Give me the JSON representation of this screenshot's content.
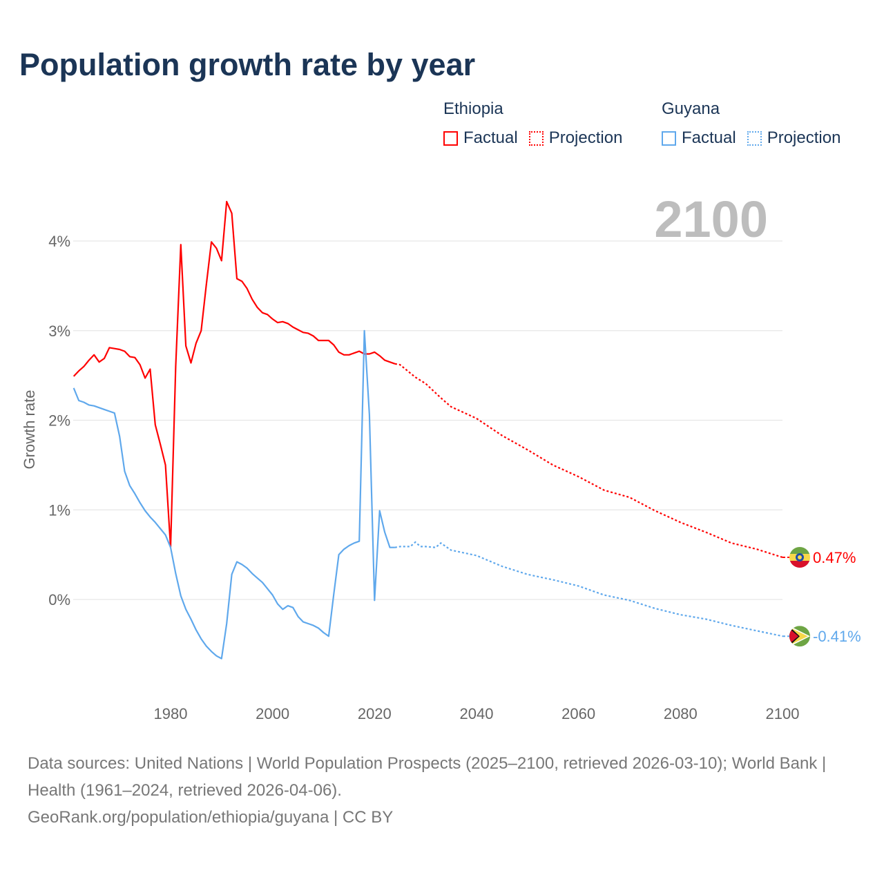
{
  "title": "Population growth rate by year",
  "legend": [
    {
      "country": "Ethiopia",
      "factual": "Factual",
      "projection": "Projection",
      "color": "#ff0000"
    },
    {
      "country": "Guyana",
      "factual": "Factual",
      "projection": "Projection",
      "color": "#5fa8ec"
    }
  ],
  "footer": {
    "sources": "Data sources: United Nations | World Population Prospects (2025–2100, retrieved 2026-03-10); World Bank | Health (1961–2024, retrieved 2026-04-06).",
    "credit": "GeoRank.org/population/ethiopia/guyana | CC BY"
  },
  "chart_data": {
    "type": "line",
    "title": "Population growth rate by year",
    "xlabel": "",
    "ylabel": "Growth rate",
    "year_label": "2100",
    "xlim": [
      1961,
      2100
    ],
    "ylim": [
      -1,
      4.5
    ],
    "x_ticks": [
      1980,
      2000,
      2020,
      2040,
      2060,
      2080,
      2100
    ],
    "y_ticks": [
      0,
      1,
      2,
      3,
      4
    ],
    "y_tick_labels": [
      "0%",
      "1%",
      "2%",
      "3%",
      "4%"
    ],
    "grid": true,
    "series": [
      {
        "name": "Ethiopia",
        "color": "#ff0000",
        "end_label": "0.47%",
        "factual": {
          "x": [
            1961,
            1962,
            1963,
            1964,
            1965,
            1966,
            1967,
            1968,
            1969,
            1970,
            1971,
            1972,
            1973,
            1974,
            1975,
            1976,
            1977,
            1978,
            1979,
            1980,
            1981,
            1982,
            1983,
            1984,
            1985,
            1986,
            1987,
            1988,
            1989,
            1990,
            1991,
            1992,
            1993,
            1994,
            1995,
            1996,
            1997,
            1998,
            1999,
            2000,
            2001,
            2002,
            2003,
            2004,
            2005,
            2006,
            2007,
            2008,
            2009,
            2010,
            2011,
            2012,
            2013,
            2014,
            2015,
            2016,
            2017,
            2018,
            2019,
            2020,
            2021,
            2022,
            2023,
            2024
          ],
          "y": [
            2.49,
            2.55,
            2.6,
            2.67,
            2.73,
            2.65,
            2.69,
            2.81,
            2.8,
            2.79,
            2.77,
            2.71,
            2.7,
            2.62,
            2.47,
            2.57,
            1.95,
            1.73,
            1.5,
            0.58,
            2.6,
            3.96,
            2.83,
            2.64,
            2.86,
            3.0,
            3.51,
            3.99,
            3.92,
            3.78,
            4.44,
            4.31,
            3.58,
            3.55,
            3.47,
            3.35,
            3.26,
            3.2,
            3.18,
            3.13,
            3.09,
            3.1,
            3.08,
            3.04,
            3.01,
            2.98,
            2.97,
            2.94,
            2.89,
            2.89,
            2.89,
            2.84,
            2.76,
            2.73,
            2.73,
            2.75,
            2.77,
            2.74,
            2.74,
            2.76,
            2.72,
            2.67,
            2.65,
            2.63
          ]
        },
        "projection": {
          "x": [
            2025,
            2028,
            2030,
            2033,
            2035,
            2040,
            2045,
            2050,
            2055,
            2060,
            2065,
            2070,
            2075,
            2080,
            2085,
            2090,
            2095,
            2100
          ],
          "y": [
            2.62,
            2.48,
            2.41,
            2.25,
            2.15,
            2.02,
            1.83,
            1.67,
            1.5,
            1.37,
            1.22,
            1.14,
            0.99,
            0.86,
            0.75,
            0.63,
            0.56,
            0.47
          ]
        }
      },
      {
        "name": "Guyana",
        "color": "#5fa8ec",
        "end_label": "-0.41%",
        "factual": {
          "x": [
            1961,
            1962,
            1963,
            1964,
            1965,
            1966,
            1967,
            1968,
            1969,
            1970,
            1971,
            1972,
            1973,
            1974,
            1975,
            1976,
            1977,
            1978,
            1979,
            1980,
            1981,
            1982,
            1983,
            1984,
            1985,
            1986,
            1987,
            1988,
            1989,
            1990,
            1991,
            1992,
            1993,
            1994,
            1995,
            1996,
            1997,
            1998,
            1999,
            2000,
            2001,
            2002,
            2003,
            2004,
            2005,
            2006,
            2007,
            2008,
            2009,
            2010,
            2011,
            2012,
            2013,
            2014,
            2015,
            2016,
            2017,
            2018,
            2019,
            2020,
            2021,
            2022,
            2023,
            2024
          ],
          "y": [
            2.36,
            2.22,
            2.2,
            2.17,
            2.16,
            2.14,
            2.12,
            2.1,
            2.08,
            1.82,
            1.43,
            1.27,
            1.18,
            1.08,
            0.99,
            0.92,
            0.86,
            0.79,
            0.72,
            0.58,
            0.29,
            0.04,
            -0.11,
            -0.22,
            -0.34,
            -0.44,
            -0.52,
            -0.58,
            -0.63,
            -0.66,
            -0.27,
            0.28,
            0.42,
            0.39,
            0.35,
            0.29,
            0.24,
            0.19,
            0.12,
            0.05,
            -0.05,
            -0.11,
            -0.07,
            -0.09,
            -0.19,
            -0.25,
            -0.27,
            -0.29,
            -0.32,
            -0.37,
            -0.41,
            0.06,
            0.5,
            0.56,
            0.6,
            0.63,
            0.65,
            3.0,
            2.06,
            -0.01,
            0.99,
            0.75,
            0.58,
            0.58
          ]
        },
        "projection": {
          "x": [
            2025,
            2027,
            2028,
            2029,
            2030,
            2032,
            2033,
            2035,
            2040,
            2045,
            2050,
            2055,
            2060,
            2065,
            2070,
            2075,
            2080,
            2085,
            2090,
            2095,
            2100
          ],
          "y": [
            0.59,
            0.59,
            0.64,
            0.59,
            0.59,
            0.58,
            0.63,
            0.55,
            0.49,
            0.37,
            0.28,
            0.22,
            0.15,
            0.05,
            -0.01,
            -0.1,
            -0.17,
            -0.22,
            -0.29,
            -0.35,
            -0.41
          ]
        }
      }
    ]
  }
}
